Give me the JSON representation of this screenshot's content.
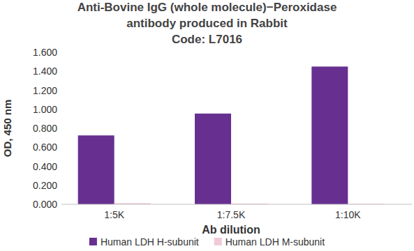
{
  "chart_data": {
    "type": "bar",
    "title": "Anti-Bovine IgG (whole molecule)−Peroxidase antibody produced in Rabbit",
    "subtitle": "Code: L7016",
    "x_label": "Ab dilution",
    "y_label": "OD, 450 nm",
    "categories": [
      "1:5K",
      "1:7.5K",
      "1:10K"
    ],
    "series": [
      {
        "name": "Human LDH H-subunit",
        "color": "#673090",
        "values": [
          0.725,
          0.955,
          1.45
        ]
      },
      {
        "name": "Human LDH M-subunit",
        "color": "#f2c9d9",
        "values": [
          0.012,
          0.008,
          0.006
        ]
      }
    ],
    "ylim": [
      0,
      1.6
    ],
    "yticks": [
      {
        "value": 0,
        "label": "0.000"
      },
      {
        "value": 0.2,
        "label": "0.200"
      },
      {
        "value": 0.4,
        "label": "0.400"
      },
      {
        "value": 0.6,
        "label": "0.600"
      },
      {
        "value": 0.8,
        "label": "0.800"
      },
      {
        "value": 1,
        "label": "1.000"
      },
      {
        "value": 1.2,
        "label": "1.200"
      },
      {
        "value": 1.4,
        "label": "1.400"
      },
      {
        "value": 1.6,
        "label": "1.600"
      }
    ],
    "grid": false,
    "legend": "bottom"
  }
}
